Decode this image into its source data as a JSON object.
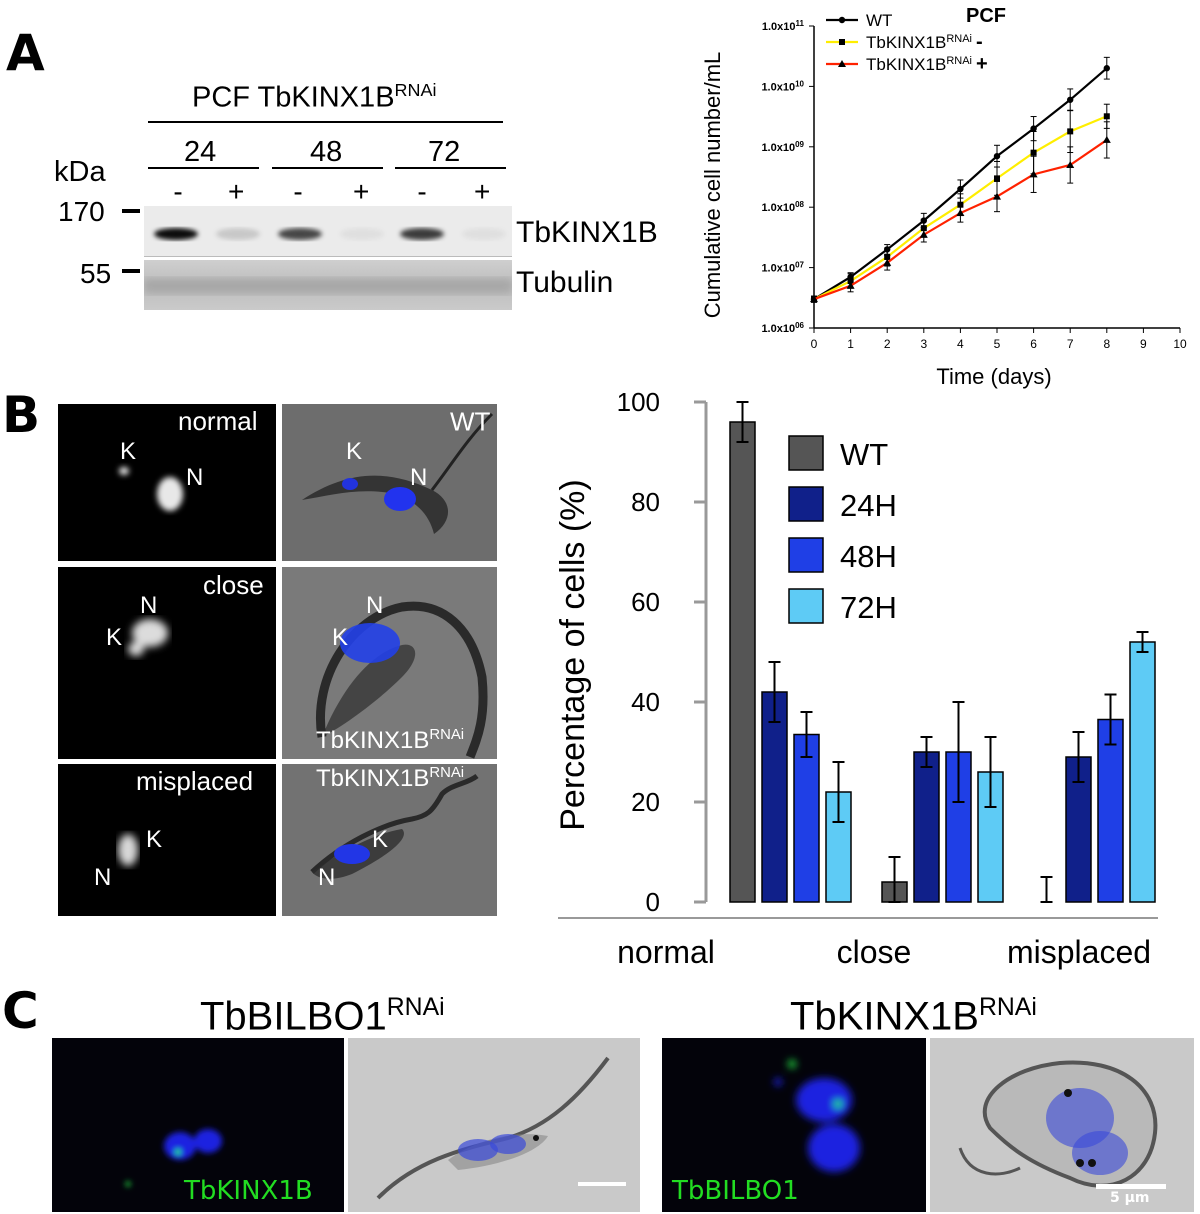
{
  "panels": {
    "a": "A",
    "b": "B",
    "c": "C"
  },
  "western": {
    "header": "PCF TbKINX1B",
    "header_sup": "RNAi",
    "timepoints": [
      "24",
      "48",
      "72"
    ],
    "kda_label": "kDa",
    "lane_signs": [
      "-",
      "+",
      "-",
      "+",
      "-",
      "+"
    ],
    "markers": [
      "170",
      "55"
    ],
    "blot_labels": [
      "TbKINX1B",
      "Tubulin"
    ],
    "kinx_band_intensity": [
      0.95,
      0.15,
      0.7,
      0.05,
      0.75,
      0.05
    ]
  },
  "growth_chart": {
    "title": "PCF",
    "ylabel": "Cumulative cell number/mL",
    "xlabel": "Time (days)",
    "x_ticks": [
      "0",
      "1",
      "2",
      "3",
      "4",
      "5",
      "6",
      "7",
      "8",
      "9",
      "10"
    ],
    "y_ticks": [
      "1.0x10",
      "1.0x10",
      "1.0x10",
      "1.0x10",
      "1.0x10",
      "1.0x10"
    ],
    "y_exps": [
      "06",
      "07",
      "08",
      "09",
      "10",
      "11"
    ],
    "legend": [
      {
        "name": "WT",
        "sup": "",
        "suffix": "",
        "color": "#000000",
        "marker": "circle"
      },
      {
        "name": "TbKINX1B",
        "sup": "RNAi",
        "suffix": "-",
        "color": "#ffee00",
        "marker": "square"
      },
      {
        "name": "TbKINX1B",
        "sup": "RNAi",
        "suffix": "+",
        "color": "#ff2200",
        "marker": "triangle"
      }
    ]
  },
  "chart_data": [
    {
      "type": "line",
      "title": "PCF",
      "xlabel": "Time (days)",
      "ylabel": "Cumulative cell number/mL",
      "log_y": true,
      "xlim": [
        0,
        10
      ],
      "ylim": [
        1000000,
        100000000000
      ],
      "x": [
        0,
        1,
        2,
        3,
        4,
        5,
        6,
        7,
        8
      ],
      "series": [
        {
          "name": "WT",
          "values": [
            3000000,
            7000000,
            20000000,
            60000000,
            200000000,
            700000000,
            2000000000,
            6000000000,
            20000000000
          ],
          "errors": [
            0.05,
            0.07,
            0.08,
            0.12,
            0.15,
            0.18,
            0.2,
            0.18,
            0.18
          ]
        },
        {
          "name": "TbKINX1B RNAi -",
          "values": [
            3000000,
            6000000,
            15000000,
            45000000,
            110000000,
            300000000,
            800000000,
            1800000000,
            3200000000
          ],
          "errors": [
            0.05,
            0.12,
            0.15,
            0.15,
            0.18,
            0.28,
            0.35,
            0.35,
            0.2
          ]
        },
        {
          "name": "TbKINX1B RNAi +",
          "values": [
            3000000,
            5000000,
            12000000,
            35000000,
            80000000,
            150000000,
            350000000,
            500000000,
            1300000000
          ],
          "errors": [
            0.05,
            0.1,
            0.12,
            0.12,
            0.15,
            0.25,
            0.3,
            0.3,
            0.3
          ]
        }
      ]
    },
    {
      "type": "bar",
      "ylabel": "Percentage of cells (%)",
      "ylim": [
        0,
        100
      ],
      "categories": [
        "normal",
        "close",
        "misplaced"
      ],
      "series": [
        {
          "name": "WT",
          "values": [
            96,
            4,
            0
          ],
          "errors": [
            4,
            5,
            5
          ]
        },
        {
          "name": "24H",
          "values": [
            42,
            30,
            29
          ],
          "errors": [
            6,
            3,
            5
          ]
        },
        {
          "name": "48H",
          "values": [
            33.5,
            30,
            36.5
          ],
          "errors": [
            4.5,
            10,
            5
          ]
        },
        {
          "name": "72H",
          "values": [
            22,
            26,
            52
          ],
          "errors": [
            6,
            7,
            2
          ]
        }
      ]
    }
  ],
  "bar_chart": {
    "ylabel": "Percentage of cells (%)",
    "y_ticks": [
      "0",
      "20",
      "40",
      "60",
      "80",
      "100"
    ],
    "categories": [
      "normal",
      "close",
      "misplaced"
    ],
    "legend": [
      {
        "name": "WT",
        "color": "#555555"
      },
      {
        "name": "24H",
        "color": "#10208a"
      },
      {
        "name": "48H",
        "color": "#1f3fe6"
      },
      {
        "name": "72H",
        "color": "#5ecbf5"
      }
    ]
  },
  "micrographs_b": {
    "rows": [
      {
        "label": "normal",
        "phase_label": "WT",
        "phase_sup": ""
      },
      {
        "label": "close",
        "phase_label": "TbKINX1B",
        "phase_sup": "RNAi"
      },
      {
        "label": "misplaced",
        "phase_label": "TbKINX1B",
        "phase_sup": "RNAi"
      }
    ],
    "k": "K",
    "n": "N"
  },
  "panel_c": {
    "left_title": "TbBILBO1",
    "left_sup": "RNAi",
    "right_title": "TbKINX1B",
    "right_sup": "RNAi",
    "left_stain": "TbKINX1B",
    "right_stain": "TbBILBO1",
    "scale": "5 µm"
  }
}
